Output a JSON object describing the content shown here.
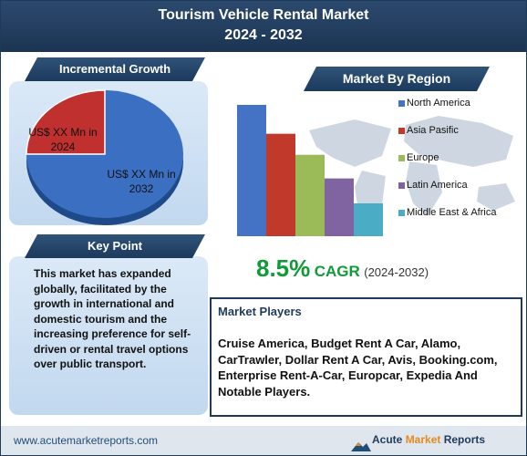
{
  "header": {
    "title_line1": "Tourism Vehicle Rental Market",
    "title_line2": "2024 - 2032"
  },
  "incremental": {
    "label": "Incremental Growth",
    "slice_2024_label": "US$ XX Mn in 2024",
    "slice_2032_label": "US$ XX Mn in 2032",
    "colors": {
      "slice_2024": "#c0302f",
      "slice_2032": "#3b6fc2"
    }
  },
  "key_point": {
    "label": "Key Point",
    "text": "This market has expanded globally, facilitated by the growth in international and domestic tourism and the increasing preference for self-driven or rental travel options over public transport."
  },
  "region": {
    "label": "Market By Region"
  },
  "chart_data": {
    "type": "bar",
    "categories": [
      "North America",
      "Asia Pasific",
      "Europe",
      "Latin America",
      "Middle East & Africa"
    ],
    "values": [
      100,
      78,
      62,
      44,
      25
    ],
    "colors": [
      "#4472c4",
      "#c0392b",
      "#9bbb59",
      "#8064a2",
      "#4bacc6"
    ],
    "legend": "right",
    "grid": false
  },
  "cagr": {
    "value": "8.5%",
    "label": "CAGR",
    "period": "(2024-2032)"
  },
  "players": {
    "title": "Market Players",
    "text": "Cruise America, Budget Rent A Car, Alamo, CarTrawler, Dollar Rent A Car, Avis, Booking.com, Enterprise Rent-A-Car, Europcar, Expedia And Notable Players."
  },
  "footer": {
    "url": "www.acutemarketreports.com",
    "logo_part1": "Acute",
    "logo_part2": "Market",
    "logo_part3": "Reports"
  },
  "colors": {
    "navy": "#1f3b5c",
    "green": "#119a38",
    "logo_orange": "#e58a1f"
  }
}
